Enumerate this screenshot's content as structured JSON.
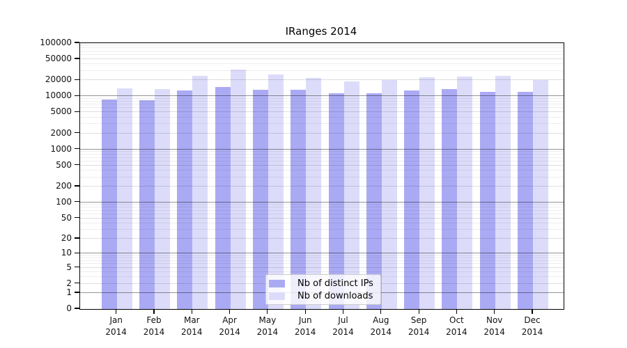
{
  "title": "IRanges 2014",
  "legend": {
    "items": [
      {
        "label": "Nb of distinct IPs",
        "color": "#aaaaf4"
      },
      {
        "label": "Nb of downloads",
        "color": "#dcdcfa"
      }
    ]
  },
  "chart_data": {
    "type": "bar",
    "title": "IRanges 2014",
    "categories": [
      "Jan",
      "Feb",
      "Mar",
      "Apr",
      "May",
      "Jun",
      "Jul",
      "Aug",
      "Sep",
      "Oct",
      "Nov",
      "Dec"
    ],
    "year_label": "2014",
    "series": [
      {
        "name": "Nb of distinct IPs",
        "color": "#aaaaf4",
        "values": [
          8600,
          8400,
          12900,
          15000,
          13400,
          13200,
          11500,
          11600,
          12900,
          13800,
          12100,
          12100
        ]
      },
      {
        "name": "Nb of downloads",
        "color": "#dcdcfa",
        "values": [
          14200,
          13700,
          24300,
          31900,
          26000,
          22400,
          19100,
          20100,
          22900,
          23800,
          24300,
          20400
        ]
      }
    ],
    "yticks": [
      0,
      1,
      2,
      5,
      10,
      20,
      50,
      100,
      200,
      500,
      1000,
      2000,
      5000,
      10000,
      20000,
      50000,
      100000
    ],
    "ylim": [
      0,
      100000
    ],
    "yscale": "log10(v+1)",
    "xlabel": "",
    "ylabel": "",
    "grid": true,
    "legend_position": "lower center"
  }
}
